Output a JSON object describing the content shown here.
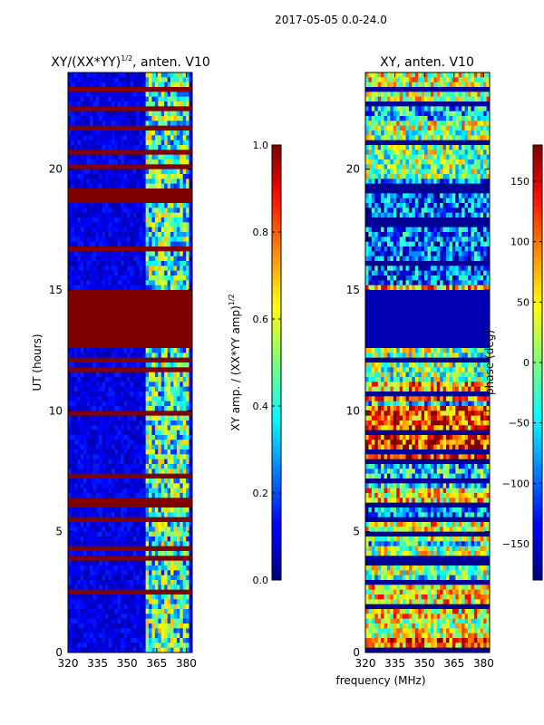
{
  "figure_title": "2017-05-05 0.0-24.0",
  "chart_data": [
    {
      "type": "heatmap",
      "title_prefix": "XY/(XX*YY)",
      "title_exponent": "1/2",
      "title_suffix": ", anten. V10",
      "xlabel": "",
      "ylabel": "UT (hours)",
      "xlim": [
        320,
        383
      ],
      "ylim": [
        0,
        24
      ],
      "xticks": [
        320,
        335,
        350,
        365,
        380
      ],
      "yticks": [
        0,
        5,
        10,
        15,
        20
      ],
      "colormap": "jet",
      "colorbar": {
        "label_text": "XY amp. / (XX*YY amp)",
        "label_exponent": "1/2",
        "min": 0.0,
        "max": 1.0,
        "ticks": [
          0.0,
          0.2,
          0.4,
          0.6,
          0.8,
          1.0
        ],
        "tick_labels": [
          "0.0",
          "0.2",
          "0.4",
          "0.6",
          "0.8",
          "1.0"
        ]
      },
      "saturated_band_hours": [
        12.6,
        15.0
      ],
      "bright_band_mhz": [
        360,
        382
      ]
    },
    {
      "type": "heatmap",
      "title": "XY, anten. V10",
      "xlabel": "frequency (MHz)",
      "ylabel": "",
      "xlim": [
        320,
        383
      ],
      "ylim": [
        0,
        24
      ],
      "xticks": [
        320,
        335,
        350,
        365,
        380
      ],
      "yticks": [
        0,
        5,
        10,
        15,
        20
      ],
      "colormap": "jet",
      "colorbar": {
        "label": "phase (deg)",
        "min": -180,
        "max": 180,
        "ticks": [
          -150,
          -100,
          -50,
          0,
          50,
          100,
          150
        ],
        "tick_labels": [
          "−150",
          "−100",
          "−50",
          "0",
          "50",
          "100",
          "150"
        ]
      },
      "low_band_hours": [
        12.6,
        15.0
      ]
    }
  ]
}
